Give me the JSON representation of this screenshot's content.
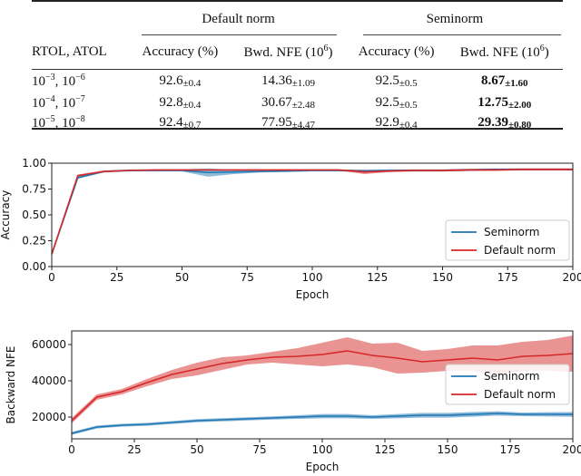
{
  "table": {
    "group_headers": [
      "Default norm",
      "Seminorm"
    ],
    "col_headers": [
      "RTOL, ATOL",
      "Accuracy (%)",
      "Bwd. NFE (10",
      "6",
      ")",
      "Accuracy (%)",
      "Bwd. NFE (10",
      "6",
      ")"
    ],
    "rows": [
      {
        "tol": [
          "10",
          "−3",
          ", 10",
          "−6"
        ],
        "cells": [
          [
            "92.6",
            "±0.4"
          ],
          [
            "14.36",
            "±1.09"
          ],
          [
            "92.5",
            "±0.5"
          ],
          [
            "8.67",
            "±1.60"
          ]
        ]
      },
      {
        "tol": [
          "10",
          "−4",
          ", 10",
          "−7"
        ],
        "cells": [
          [
            "92.8",
            "±0.4"
          ],
          [
            "30.67",
            "±2.48"
          ],
          [
            "92.5",
            "±0.5"
          ],
          [
            "12.75",
            "±2.00"
          ]
        ]
      },
      {
        "tol": [
          "10",
          "−5",
          ", 10",
          "−8"
        ],
        "cells": [
          [
            "92.4",
            "±0.7"
          ],
          [
            "77.95",
            "±4.47"
          ],
          [
            "92.9",
            "±0.4"
          ],
          [
            "29.39",
            "±0.80"
          ]
        ]
      }
    ],
    "bold_column": "Seminorm Bwd. NFE"
  },
  "chart_data": [
    {
      "type": "line",
      "xlabel": "Epoch",
      "ylabel": "Accuracy",
      "xlim": [
        0,
        200
      ],
      "ylim": [
        0,
        1
      ],
      "xticks": [
        "0",
        "25",
        "50",
        "75",
        "100",
        "125",
        "150",
        "175",
        "200"
      ],
      "yticks": [
        "0.00",
        "0.25",
        "0.50",
        "0.75",
        "1.00"
      ],
      "legend": "center-right",
      "x": [
        0,
        10,
        20,
        30,
        40,
        50,
        60,
        70,
        80,
        90,
        100,
        110,
        120,
        130,
        140,
        150,
        160,
        170,
        180,
        190,
        200
      ],
      "series": [
        {
          "name": "Seminorm",
          "color": "#1f77b4",
          "values": [
            0.12,
            0.86,
            0.92,
            0.93,
            0.93,
            0.93,
            0.91,
            0.915,
            0.92,
            0.925,
            0.93,
            0.93,
            0.925,
            0.93,
            0.93,
            0.93,
            0.935,
            0.94,
            0.94,
            0.94,
            0.94
          ],
          "spread": [
            0.01,
            0.01,
            0.01,
            0.01,
            0.01,
            0.01,
            0.04,
            0.02,
            0.01,
            0.01,
            0.01,
            0.01,
            0.01,
            0.01,
            0.01,
            0.01,
            0.01,
            0.01,
            0.01,
            0.01,
            0.01
          ]
        },
        {
          "name": "Default norm",
          "color": "#d62728",
          "values": [
            0.12,
            0.88,
            0.92,
            0.93,
            0.935,
            0.935,
            0.935,
            0.935,
            0.935,
            0.935,
            0.935,
            0.935,
            0.915,
            0.925,
            0.93,
            0.93,
            0.935,
            0.935,
            0.94,
            0.94,
            0.94
          ],
          "spread": [
            0.01,
            0.01,
            0.01,
            0.005,
            0.005,
            0.005,
            0.005,
            0.005,
            0.005,
            0.005,
            0.005,
            0.005,
            0.02,
            0.01,
            0.01,
            0.01,
            0.01,
            0.01,
            0.01,
            0.01,
            0.01
          ]
        }
      ]
    },
    {
      "type": "line",
      "xlabel": "Epoch",
      "ylabel": "Backward NFE",
      "xlim": [
        0,
        200
      ],
      "ylim": [
        8000,
        67500
      ],
      "xticks": [
        "0",
        "25",
        "50",
        "75",
        "100",
        "125",
        "150",
        "175",
        "200"
      ],
      "yticks": [
        "20000",
        "40000",
        "60000"
      ],
      "legend": "center-right",
      "x": [
        0,
        10,
        20,
        30,
        40,
        50,
        60,
        70,
        80,
        90,
        100,
        110,
        120,
        130,
        140,
        150,
        160,
        170,
        180,
        190,
        200
      ],
      "series": [
        {
          "name": "Seminorm",
          "color": "#1f77b4",
          "values": [
            11000,
            14500,
            15500,
            16000,
            17000,
            18000,
            18500,
            19000,
            19500,
            20000,
            20500,
            20500,
            20000,
            20500,
            21000,
            21000,
            21500,
            22000,
            21500,
            21500,
            21500
          ],
          "spread": [
            800,
            800,
            800,
            800,
            800,
            900,
            900,
            900,
            900,
            1000,
            1200,
            1200,
            1000,
            1200,
            1300,
            1300,
            1300,
            1200,
            1000,
            1200,
            1300
          ]
        },
        {
          "name": "Default norm",
          "color": "#d62728",
          "values": [
            18000,
            31000,
            34000,
            39000,
            43500,
            46500,
            49500,
            51500,
            53000,
            53500,
            54500,
            56500,
            54000,
            52500,
            50500,
            51500,
            52500,
            51500,
            53500,
            54000,
            55000
          ],
          "spread": [
            1500,
            1500,
            1500,
            2000,
            2500,
            3500,
            3500,
            2500,
            3000,
            4500,
            6500,
            7500,
            6500,
            8500,
            6000,
            6000,
            7000,
            8000,
            8000,
            8500,
            10000
          ]
        }
      ]
    }
  ]
}
